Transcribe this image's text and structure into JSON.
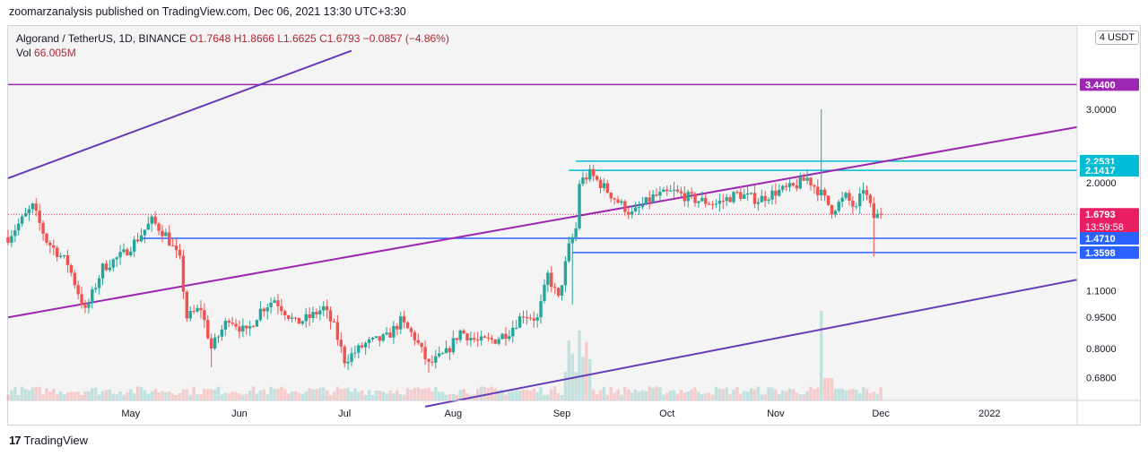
{
  "header": {
    "published": "zoomarzanalysis published on TradingView.com, Dec 06, 2021 13:30 UTC+3:30"
  },
  "legend": {
    "symbol": "Algorand / TetherUS, 1D, BINANCE",
    "open": "O1.7648",
    "high": "H1.8666",
    "low": "L1.6625",
    "close": "C1.6793",
    "change": "−0.0857 (−4.86%)",
    "vol_label": "Vol",
    "vol_value": "66.005M"
  },
  "currency_badge": "USDT",
  "currency_prefix": "4",
  "footer": {
    "brand": "TradingView",
    "brand_mark": "17"
  },
  "colors": {
    "up": "#26a69a",
    "down": "#ef5350",
    "purple": "#9c27b0",
    "violet": "#673ab7",
    "cyan": "#00bcd4",
    "blue": "#2962ff",
    "price": "#e91e63"
  },
  "chart_data": {
    "type": "candlestick",
    "title": "Algorand / TetherUS, 1D, BINANCE",
    "x_ticks": [
      "May",
      "Jun",
      "Jul",
      "Aug",
      "Sep",
      "Oct",
      "Nov",
      "Dec",
      "2022"
    ],
    "y_ticks": [
      "3.0000",
      "2.0000",
      "1.1000",
      "0.9500",
      "0.8000",
      "0.6800"
    ],
    "y_scale": "log",
    "ylim": [
      0.6,
      4.1
    ],
    "price_labels": [
      {
        "value": "3.4400",
        "color": "#9c27b0"
      },
      {
        "value": "2.2531",
        "color": "#00bcd4"
      },
      {
        "value": "2.1417",
        "color": "#00bcd4"
      },
      {
        "value": "1.6793",
        "color": "#e91e63",
        "countdown": "13:59:58"
      },
      {
        "value": "1.4710",
        "color": "#2962ff"
      },
      {
        "value": "1.3598",
        "color": "#2962ff"
      }
    ],
    "levels": [
      {
        "price": 3.44,
        "color": "#9c27b0",
        "from_date": "2021-04-01"
      },
      {
        "price": 2.2531,
        "color": "#00bcd4",
        "from_date": "2021-09-10"
      },
      {
        "price": 2.1417,
        "color": "#00bcd4",
        "from_date": "2021-09-08"
      },
      {
        "price": 1.471,
        "color": "#2962ff",
        "from_date": "2021-05-09"
      },
      {
        "price": 1.3598,
        "color": "#2962ff",
        "from_date": "2021-09-09"
      }
    ],
    "trendlines": [
      {
        "color": "#673ab7",
        "p1": {
          "date": "2021-04-01",
          "price": 2.05
        },
        "p2": {
          "date": "2021-07-08",
          "price": 4.15
        }
      },
      {
        "color": "#9c27b0",
        "p1": {
          "date": "2021-04-01",
          "price": 0.95
        },
        "p2": {
          "date": "2022-01-31",
          "price": 2.72
        }
      },
      {
        "color": "#673ab7",
        "p1": {
          "date": "2021-07-29",
          "price": 0.58
        },
        "p2": {
          "date": "2022-01-31",
          "price": 1.17
        }
      }
    ],
    "last_close": 1.6793,
    "anchors": [
      [
        "2021-04-01",
        1.48
      ],
      [
        "2021-04-08",
        1.75
      ],
      [
        "2021-04-12",
        1.45
      ],
      [
        "2021-04-18",
        1.28
      ],
      [
        "2021-04-23",
        0.98
      ],
      [
        "2021-04-28",
        1.25
      ],
      [
        "2021-05-04",
        1.35
      ],
      [
        "2021-05-08",
        1.47
      ],
      [
        "2021-05-12",
        1.62
      ],
      [
        "2021-05-16",
        1.5
      ],
      [
        "2021-05-20",
        1.3
      ],
      [
        "2021-05-22",
        0.95
      ],
      [
        "2021-05-26",
        1.0
      ],
      [
        "2021-05-29",
        0.8
      ],
      [
        "2021-06-03",
        0.95
      ],
      [
        "2021-06-08",
        0.87
      ],
      [
        "2021-06-12",
        0.99
      ],
      [
        "2021-06-16",
        1.05
      ],
      [
        "2021-06-22",
        0.92
      ],
      [
        "2021-06-26",
        0.95
      ],
      [
        "2021-06-30",
        1.0
      ],
      [
        "2021-07-03",
        0.9
      ],
      [
        "2021-07-06",
        0.75
      ],
      [
        "2021-07-12",
        0.82
      ],
      [
        "2021-07-18",
        0.85
      ],
      [
        "2021-07-22",
        0.93
      ],
      [
        "2021-07-26",
        0.85
      ],
      [
        "2021-07-30",
        0.73
      ],
      [
        "2021-08-04",
        0.78
      ],
      [
        "2021-08-08",
        0.88
      ],
      [
        "2021-08-13",
        0.83
      ],
      [
        "2021-08-18",
        0.84
      ],
      [
        "2021-08-22",
        0.88
      ],
      [
        "2021-08-26",
        0.97
      ],
      [
        "2021-08-30",
        0.94
      ],
      [
        "2021-09-02",
        1.2
      ],
      [
        "2021-09-05",
        1.05
      ],
      [
        "2021-09-08",
        1.4
      ],
      [
        "2021-09-10",
        1.55
      ],
      [
        "2021-09-11",
        2.0
      ],
      [
        "2021-09-14",
        2.1
      ],
      [
        "2021-09-18",
        1.95
      ],
      [
        "2021-09-22",
        1.8
      ],
      [
        "2021-09-26",
        1.68
      ],
      [
        "2021-10-02",
        1.85
      ],
      [
        "2021-10-08",
        1.9
      ],
      [
        "2021-10-14",
        1.82
      ],
      [
        "2021-10-20",
        1.78
      ],
      [
        "2021-10-26",
        1.88
      ],
      [
        "2021-11-01",
        1.82
      ],
      [
        "2021-11-06",
        1.9
      ],
      [
        "2021-11-11",
        1.95
      ],
      [
        "2021-11-15",
        2.05
      ],
      [
        "2021-11-19",
        1.88
      ],
      [
        "2021-11-22",
        1.72
      ],
      [
        "2021-11-26",
        1.85
      ],
      [
        "2021-11-29",
        1.72
      ],
      [
        "2021-12-01",
        1.95
      ],
      [
        "2021-12-04",
        1.65
      ],
      [
        "2021-12-06",
        1.68
      ]
    ]
  }
}
